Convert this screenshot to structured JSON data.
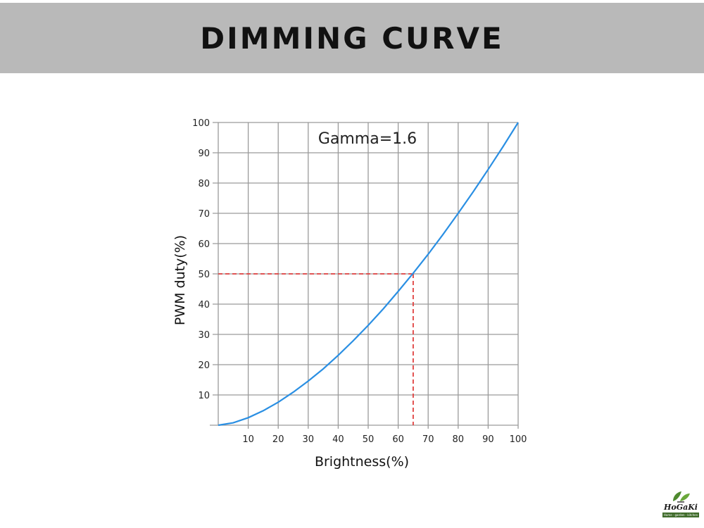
{
  "header": {
    "title": "DIMMING CURVE"
  },
  "chart_data": {
    "type": "line",
    "title": "",
    "annotation": "Gamma=1.6",
    "gamma": 1.6,
    "xlabel": "Brightness(%)",
    "ylabel": "PWM duty(%)",
    "xlim": [
      0,
      100
    ],
    "ylim": [
      0,
      100
    ],
    "x_ticks": [
      "10",
      "20",
      "30",
      "40",
      "50",
      "60",
      "70",
      "80",
      "90",
      "100"
    ],
    "y_ticks": [
      "10",
      "20",
      "30",
      "40",
      "50",
      "60",
      "70",
      "80",
      "90",
      "100"
    ],
    "grid": true,
    "series": [
      {
        "x": [
          0,
          5,
          10,
          15,
          20,
          25,
          30,
          35,
          40,
          45,
          50,
          55,
          60,
          65,
          70,
          75,
          80,
          85,
          90,
          95,
          100
        ],
        "y": [
          0,
          0.8,
          2.5,
          4.8,
          7.6,
          10.9,
          14.6,
          18.6,
          23.1,
          27.9,
          33.0,
          38.4,
          44.2,
          50.2,
          56.5,
          63.1,
          70.0,
          77.1,
          84.5,
          92.1,
          100
        ],
        "color": "#2a8fe3"
      }
    ],
    "reference_point": {
      "x": 65,
      "y": 50,
      "color": "#e0403f",
      "style": "dashed"
    }
  },
  "logo": {
    "brand": "HoGaKi",
    "tagline": "Home · garden · kitchen"
  }
}
